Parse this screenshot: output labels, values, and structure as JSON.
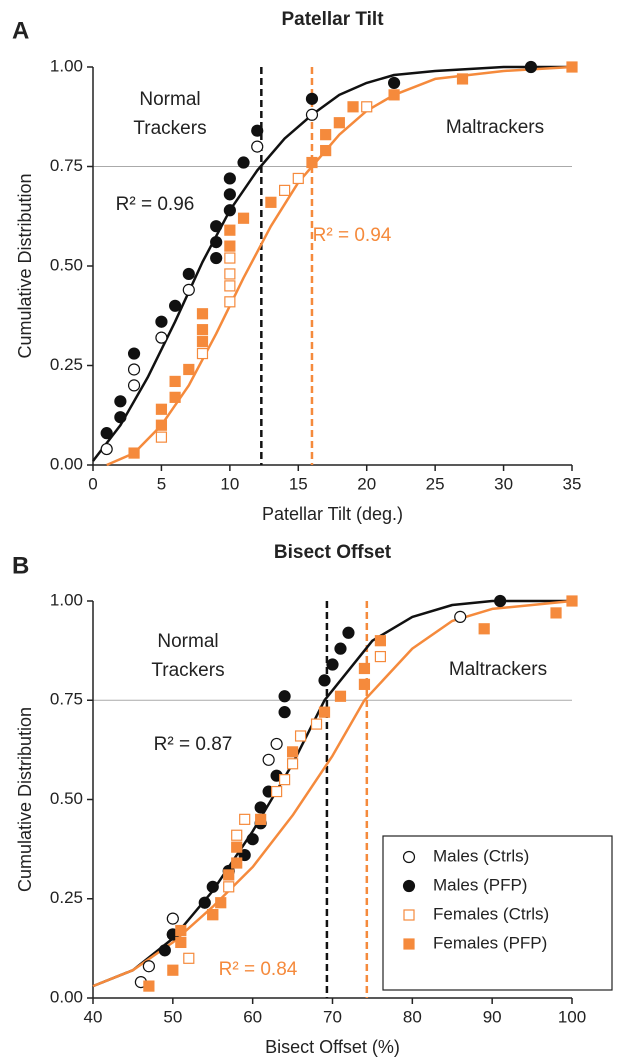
{
  "chart_data": [
    {
      "type": "scatter",
      "panel_label": "A",
      "title": "Patellar Tilt",
      "x_label": "Patellar Tilt (deg.)",
      "y_label": "Cumulative Distribution",
      "xlim": [
        0,
        35
      ],
      "xticks": [
        0,
        5,
        10,
        15,
        20,
        25,
        30,
        35
      ],
      "ylim": [
        0,
        1
      ],
      "yticks": [
        {
          "value": 0,
          "label": "0.00"
        },
        {
          "value": 0.25,
          "label": "0.25"
        },
        {
          "value": 0.5,
          "label": "0.50"
        },
        {
          "value": 0.75,
          "label": "0.75"
        },
        {
          "value": 1,
          "label": "1.00"
        }
      ],
      "reference_line": 0.75,
      "series": [
        {
          "name": "Males (Ctrls)",
          "color": "#111111",
          "marker": "circle",
          "filled": false,
          "x": [
            1,
            3,
            3,
            5,
            7,
            12,
            16
          ],
          "values": [
            0.04,
            0.2,
            0.24,
            0.32,
            0.44,
            0.8,
            0.88
          ]
        },
        {
          "name": "Males (PFP)",
          "color": "#111111",
          "marker": "circle",
          "filled": true,
          "x": [
            1,
            2,
            2,
            3,
            5,
            6,
            7,
            9,
            9,
            9,
            10,
            10,
            10,
            11,
            12,
            16,
            22,
            32
          ],
          "values": [
            0.08,
            0.12,
            0.16,
            0.28,
            0.36,
            0.4,
            0.48,
            0.52,
            0.56,
            0.6,
            0.64,
            0.68,
            0.72,
            0.76,
            0.84,
            0.92,
            0.96,
            1.0
          ]
        },
        {
          "name": "Females (Ctrls)",
          "color": "#f58a3c",
          "marker": "square",
          "filled": false,
          "x": [
            5,
            8,
            10,
            10,
            10,
            10,
            14,
            15,
            20
          ],
          "values": [
            0.07,
            0.28,
            0.41,
            0.45,
            0.48,
            0.52,
            0.69,
            0.72,
            0.9
          ]
        },
        {
          "name": "Females (PFP)",
          "color": "#f58a3c",
          "marker": "square",
          "filled": true,
          "x": [
            3,
            5,
            5,
            6,
            6,
            7,
            8,
            8,
            8,
            10,
            10,
            11,
            13,
            16,
            17,
            17,
            18,
            19,
            22,
            27,
            35
          ],
          "values": [
            0.03,
            0.1,
            0.14,
            0.17,
            0.21,
            0.24,
            0.31,
            0.34,
            0.38,
            0.55,
            0.59,
            0.62,
            0.66,
            0.76,
            0.79,
            0.83,
            0.86,
            0.9,
            0.93,
            0.97,
            1.0
          ]
        }
      ],
      "fits": [
        {
          "color": "#111111",
          "x": [
            0,
            2,
            4,
            6,
            8,
            10,
            12,
            14,
            16,
            18,
            20,
            22,
            25,
            30,
            35
          ],
          "values": [
            0.01,
            0.1,
            0.22,
            0.36,
            0.51,
            0.64,
            0.74,
            0.82,
            0.88,
            0.93,
            0.96,
            0.98,
            0.99,
            1.0,
            1.0
          ]
        },
        {
          "color": "#f58a3c",
          "x": [
            1,
            3,
            5,
            7,
            9,
            11,
            13,
            15,
            16,
            18,
            20,
            22,
            25,
            30,
            35
          ],
          "values": [
            0.0,
            0.03,
            0.1,
            0.2,
            0.33,
            0.47,
            0.6,
            0.71,
            0.75,
            0.83,
            0.89,
            0.93,
            0.97,
            0.99,
            1.0
          ]
        }
      ],
      "thresholds": [
        {
          "x": 12.3,
          "color": "#111111"
        },
        {
          "x": 16,
          "color": "#f58a3c"
        }
      ],
      "annotations": [
        {
          "lines": [
            "Normal",
            "Trackers"
          ],
          "color": "#222222"
        },
        {
          "lines": [
            "Maltrackers"
          ],
          "color": "#222222"
        },
        {
          "lines": [
            "R² = 0.96"
          ],
          "color": "#222222"
        },
        {
          "lines": [
            "R² = 0.94"
          ],
          "color": "#f58a3c"
        }
      ]
    },
    {
      "type": "scatter",
      "panel_label": "B",
      "title": "Bisect Offset",
      "x_label": "Bisect Offset (%)",
      "y_label": "Cumulative Distribution",
      "xlim": [
        40,
        100
      ],
      "xticks": [
        40,
        50,
        60,
        70,
        80,
        90,
        100
      ],
      "ylim": [
        0,
        1
      ],
      "yticks": [
        {
          "value": 0,
          "label": "0.00"
        },
        {
          "value": 0.25,
          "label": "0.25"
        },
        {
          "value": 0.5,
          "label": "0.50"
        },
        {
          "value": 0.75,
          "label": "0.75"
        },
        {
          "value": 1,
          "label": "1.00"
        }
      ],
      "reference_line": 0.75,
      "legend": "lower right",
      "series": [
        {
          "name": "Males (Ctrls)",
          "color": "#111111",
          "marker": "circle",
          "filled": false,
          "x": [
            46,
            47,
            50,
            50,
            62,
            63,
            86
          ],
          "values": [
            0.04,
            0.08,
            0.16,
            0.2,
            0.6,
            0.64,
            0.96
          ]
        },
        {
          "name": "Males (PFP)",
          "color": "#111111",
          "marker": "circle",
          "filled": true,
          "x": [
            49,
            50,
            54,
            55,
            57,
            59,
            60,
            61,
            61,
            62,
            63,
            64,
            64,
            69,
            70,
            71,
            72,
            91
          ],
          "values": [
            0.12,
            0.16,
            0.24,
            0.28,
            0.32,
            0.36,
            0.4,
            0.44,
            0.48,
            0.52,
            0.56,
            0.72,
            0.76,
            0.8,
            0.84,
            0.88,
            0.92,
            1.0
          ]
        },
        {
          "name": "Females (Ctrls)",
          "color": "#f58a3c",
          "marker": "square",
          "filled": false,
          "x": [
            52,
            55,
            57,
            58,
            59,
            63,
            64,
            65,
            66,
            68,
            76
          ],
          "values": [
            0.1,
            0.21,
            0.28,
            0.41,
            0.45,
            0.52,
            0.55,
            0.59,
            0.66,
            0.69,
            0.86
          ]
        },
        {
          "name": "Females (PFP)",
          "color": "#f58a3c",
          "marker": "square",
          "filled": true,
          "x": [
            47,
            50,
            51,
            51,
            55,
            56,
            57,
            58,
            58,
            61,
            65,
            69,
            71,
            74,
            74,
            76,
            89,
            98,
            100
          ],
          "values": [
            0.03,
            0.07,
            0.14,
            0.17,
            0.21,
            0.24,
            0.31,
            0.34,
            0.38,
            0.45,
            0.62,
            0.72,
            0.76,
            0.79,
            0.83,
            0.9,
            0.93,
            0.97,
            1.0
          ]
        }
      ],
      "fits": [
        {
          "color": "#111111",
          "x": [
            40,
            45,
            50,
            55,
            60,
            65,
            69,
            75,
            80,
            85,
            90,
            95,
            100
          ],
          "values": [
            0.03,
            0.07,
            0.15,
            0.27,
            0.42,
            0.59,
            0.75,
            0.9,
            0.96,
            0.99,
            1.0,
            1.0,
            1.0
          ]
        },
        {
          "color": "#f58a3c",
          "x": [
            40,
            45,
            50,
            55,
            60,
            65,
            70,
            74,
            80,
            85,
            90,
            95,
            100
          ],
          "values": [
            0.03,
            0.07,
            0.14,
            0.23,
            0.33,
            0.46,
            0.61,
            0.75,
            0.88,
            0.95,
            0.98,
            0.99,
            1.0
          ]
        }
      ],
      "thresholds": [
        {
          "x": 69.3,
          "color": "#111111"
        },
        {
          "x": 74.3,
          "color": "#f58a3c"
        }
      ],
      "annotations": [
        {
          "lines": [
            "Normal",
            "Trackers"
          ],
          "color": "#222222"
        },
        {
          "lines": [
            "Maltrackers"
          ],
          "color": "#222222"
        },
        {
          "lines": [
            "R² = 0.87"
          ],
          "color": "#222222"
        },
        {
          "lines": [
            "R² = 0.84"
          ],
          "color": "#f58a3c"
        }
      ]
    }
  ]
}
